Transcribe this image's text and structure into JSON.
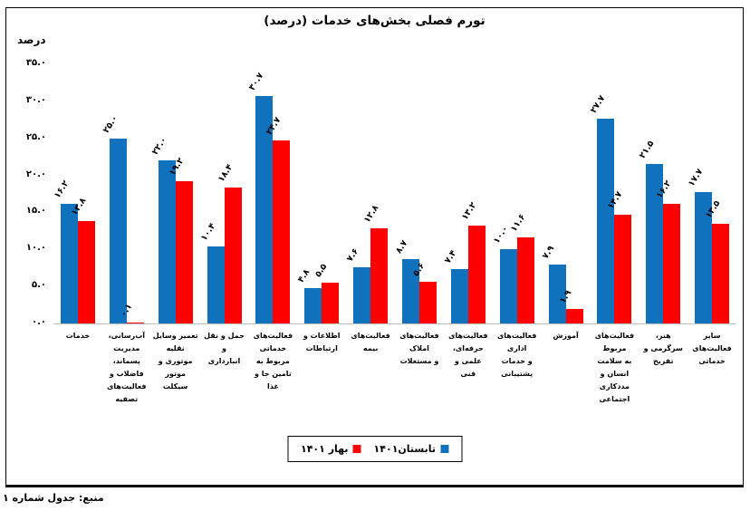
{
  "frame": {
    "source_note": "منبع: جدول شماره ۱"
  },
  "chart_data": {
    "type": "bar",
    "title": "تورم فصلی بخش‌های خدمات (درصد)",
    "xlabel": "",
    "ylabel": "درصد",
    "ylim": [
      0,
      35
    ],
    "ytick_step": 5,
    "yticks_fa": [
      "۳۵.۰",
      "۳۰.۰",
      "۲۵.۰",
      "۲۰.۰",
      "۱۵.۰",
      "۱۰.۰",
      "۵.۰",
      "۰.۰"
    ],
    "grid": false,
    "legend_position": "bottom-center",
    "categories": [
      "خدمات",
      "آب‌رسانی، مدیریت پسماند، فاضلاب و فعالیت‌های تصفیه",
      "تعمیر وسایل نقلیه موتوری و موتور سیکلت",
      "حمل و نقل و انبارداری",
      "فعالیت‌های خدماتی مربوط به تامین جا و غذا",
      "اطلاعات و ارتباطات",
      "فعالیت‌های بیمه",
      "فعالیت‌های املاک و مستغلات",
      "فعالیت‌های حرفه‌ای، علمی و فنی",
      "فعالیت‌های اداری و خدمات پشتیبانی",
      "آموزش",
      "فعالیت‌های مربوط به سلامت انسان و مددکاری اجتماعی",
      "هنر، سرگرمی و تفریح",
      "سایر فعالیت‌های خدماتی"
    ],
    "category_lines": [
      [
        "خدمات"
      ],
      [
        "آب‌رسانی،",
        "مدیریت پسماند،",
        "فاضلاب و",
        "فعالیت‌های تصفیه"
      ],
      [
        "تعمیر وسایل نقلیه",
        "موتوری و موتور",
        "سیکلت"
      ],
      [
        "حمل و نقل و",
        "انبارداری"
      ],
      [
        "فعالیت‌های",
        "خدماتی مربوط به",
        "تامین جا و غذا"
      ],
      [
        "اطلاعات و",
        "ارتباطات"
      ],
      [
        "فعالیت‌های بیمه"
      ],
      [
        "فعالیت‌های املاک",
        "و مستغلات"
      ],
      [
        "فعالیت‌های",
        "حرفه‌ای، علمی و",
        "فنی"
      ],
      [
        "فعالیت‌های اداری",
        "و خدمات پشتیبانی"
      ],
      [
        "آموزش"
      ],
      [
        "فعالیت‌های مربوط",
        "به سلامت انسان و",
        "مددکاری",
        "اجتماعی"
      ],
      [
        "هنر، سرگرمی و",
        "تفریح"
      ],
      [
        "سایر فعالیت‌های",
        "خدماتی"
      ]
    ],
    "series": [
      {
        "name": "تابستان۱۴۰۱",
        "color": "#1072BC",
        "values": [
          16.2,
          25.0,
          22.0,
          10.4,
          30.7,
          4.8,
          7.6,
          8.7,
          7.4,
          10.0,
          7.9,
          27.7,
          21.5,
          17.7
        ],
        "labels_fa": [
          "۱۶.۲",
          "۲۵.۰",
          "۲۲.۰",
          "۱۰.۴",
          "۳۰.۷",
          "۴.۸",
          "۷.۶",
          "۸.۷",
          "۷.۴",
          "۱۰.۰",
          "۷.۹",
          "۲۷.۷",
          "۲۱.۵",
          "۱۷.۷"
        ]
      },
      {
        "name": "بهار ۱۴۰۱",
        "color": "#FF0000",
        "values": [
          13.8,
          0.1,
          19.2,
          18.4,
          24.7,
          5.5,
          12.8,
          5.6,
          13.2,
          11.6,
          1.9,
          14.7,
          16.2,
          13.5
        ],
        "labels_fa": [
          "۱۳.۸",
          "۰.۱",
          "۱۹.۲",
          "۱۸.۴",
          "۲۴.۷",
          "۵.۵",
          "۱۲.۸",
          "۵.۶",
          "۱۳.۲",
          "۱۱.۶",
          "۱.۹",
          "۱۴.۷",
          "۱۶.۲",
          "۱۳.۵"
        ]
      }
    ]
  }
}
